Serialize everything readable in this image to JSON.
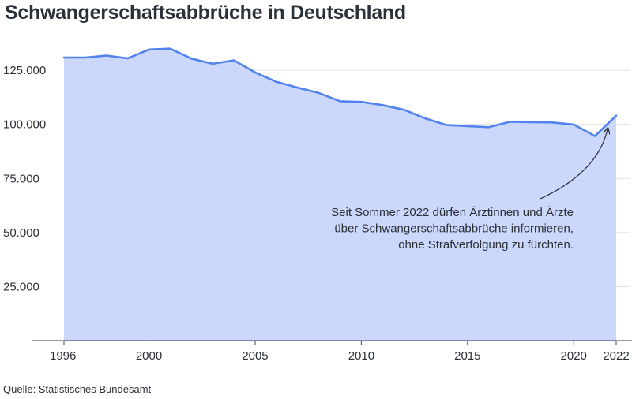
{
  "title": "Schwangerschaftsabbrüche in Deutschland",
  "source": "Quelle: Statistisches Bundesamt",
  "colors": {
    "fill": "#cbd8fb",
    "line": "#5283ec",
    "grid": "#dde0e6",
    "text": "#2b2f36"
  },
  "chart_data": {
    "type": "area",
    "title": "Schwangerschaftsabbrüche in Deutschland",
    "xlabel": "",
    "ylabel": "",
    "x": [
      1996,
      1997,
      1998,
      1999,
      2000,
      2001,
      2002,
      2003,
      2004,
      2005,
      2006,
      2007,
      2008,
      2009,
      2010,
      2011,
      2012,
      2013,
      2014,
      2015,
      2016,
      2017,
      2018,
      2019,
      2020,
      2021,
      2022
    ],
    "values": [
      130900,
      130900,
      131800,
      130500,
      134600,
      135000,
      130400,
      128000,
      129600,
      124000,
      119700,
      117000,
      114500,
      110700,
      110400,
      108900,
      106800,
      102800,
      99700,
      99200,
      98700,
      101200,
      100990,
      100890,
      99950,
      94600,
      104000
    ],
    "xlim": [
      1996,
      2022
    ],
    "ylim": [
      0,
      140000
    ],
    "x_ticks": [
      1996,
      2000,
      2005,
      2010,
      2015,
      2020,
      2022
    ],
    "x_tick_labels": [
      "1996",
      "2000",
      "2005",
      "2010",
      "2015",
      "2020",
      "2022"
    ],
    "y_ticks": [
      25000,
      50000,
      75000,
      100000,
      125000
    ],
    "y_tick_labels": [
      "25.000",
      "50.000",
      "75.000",
      "100.000",
      "125.000"
    ],
    "grid": true,
    "annotation": {
      "lines": [
        "Seit Sommer 2022 dürfen Ärztinnen und Ärzte",
        "über Schwangerschaftsabbrüche informieren,",
        "ohne Strafverfolgung zu fürchten."
      ],
      "points_to": [
        2021.6,
        99500
      ]
    }
  }
}
